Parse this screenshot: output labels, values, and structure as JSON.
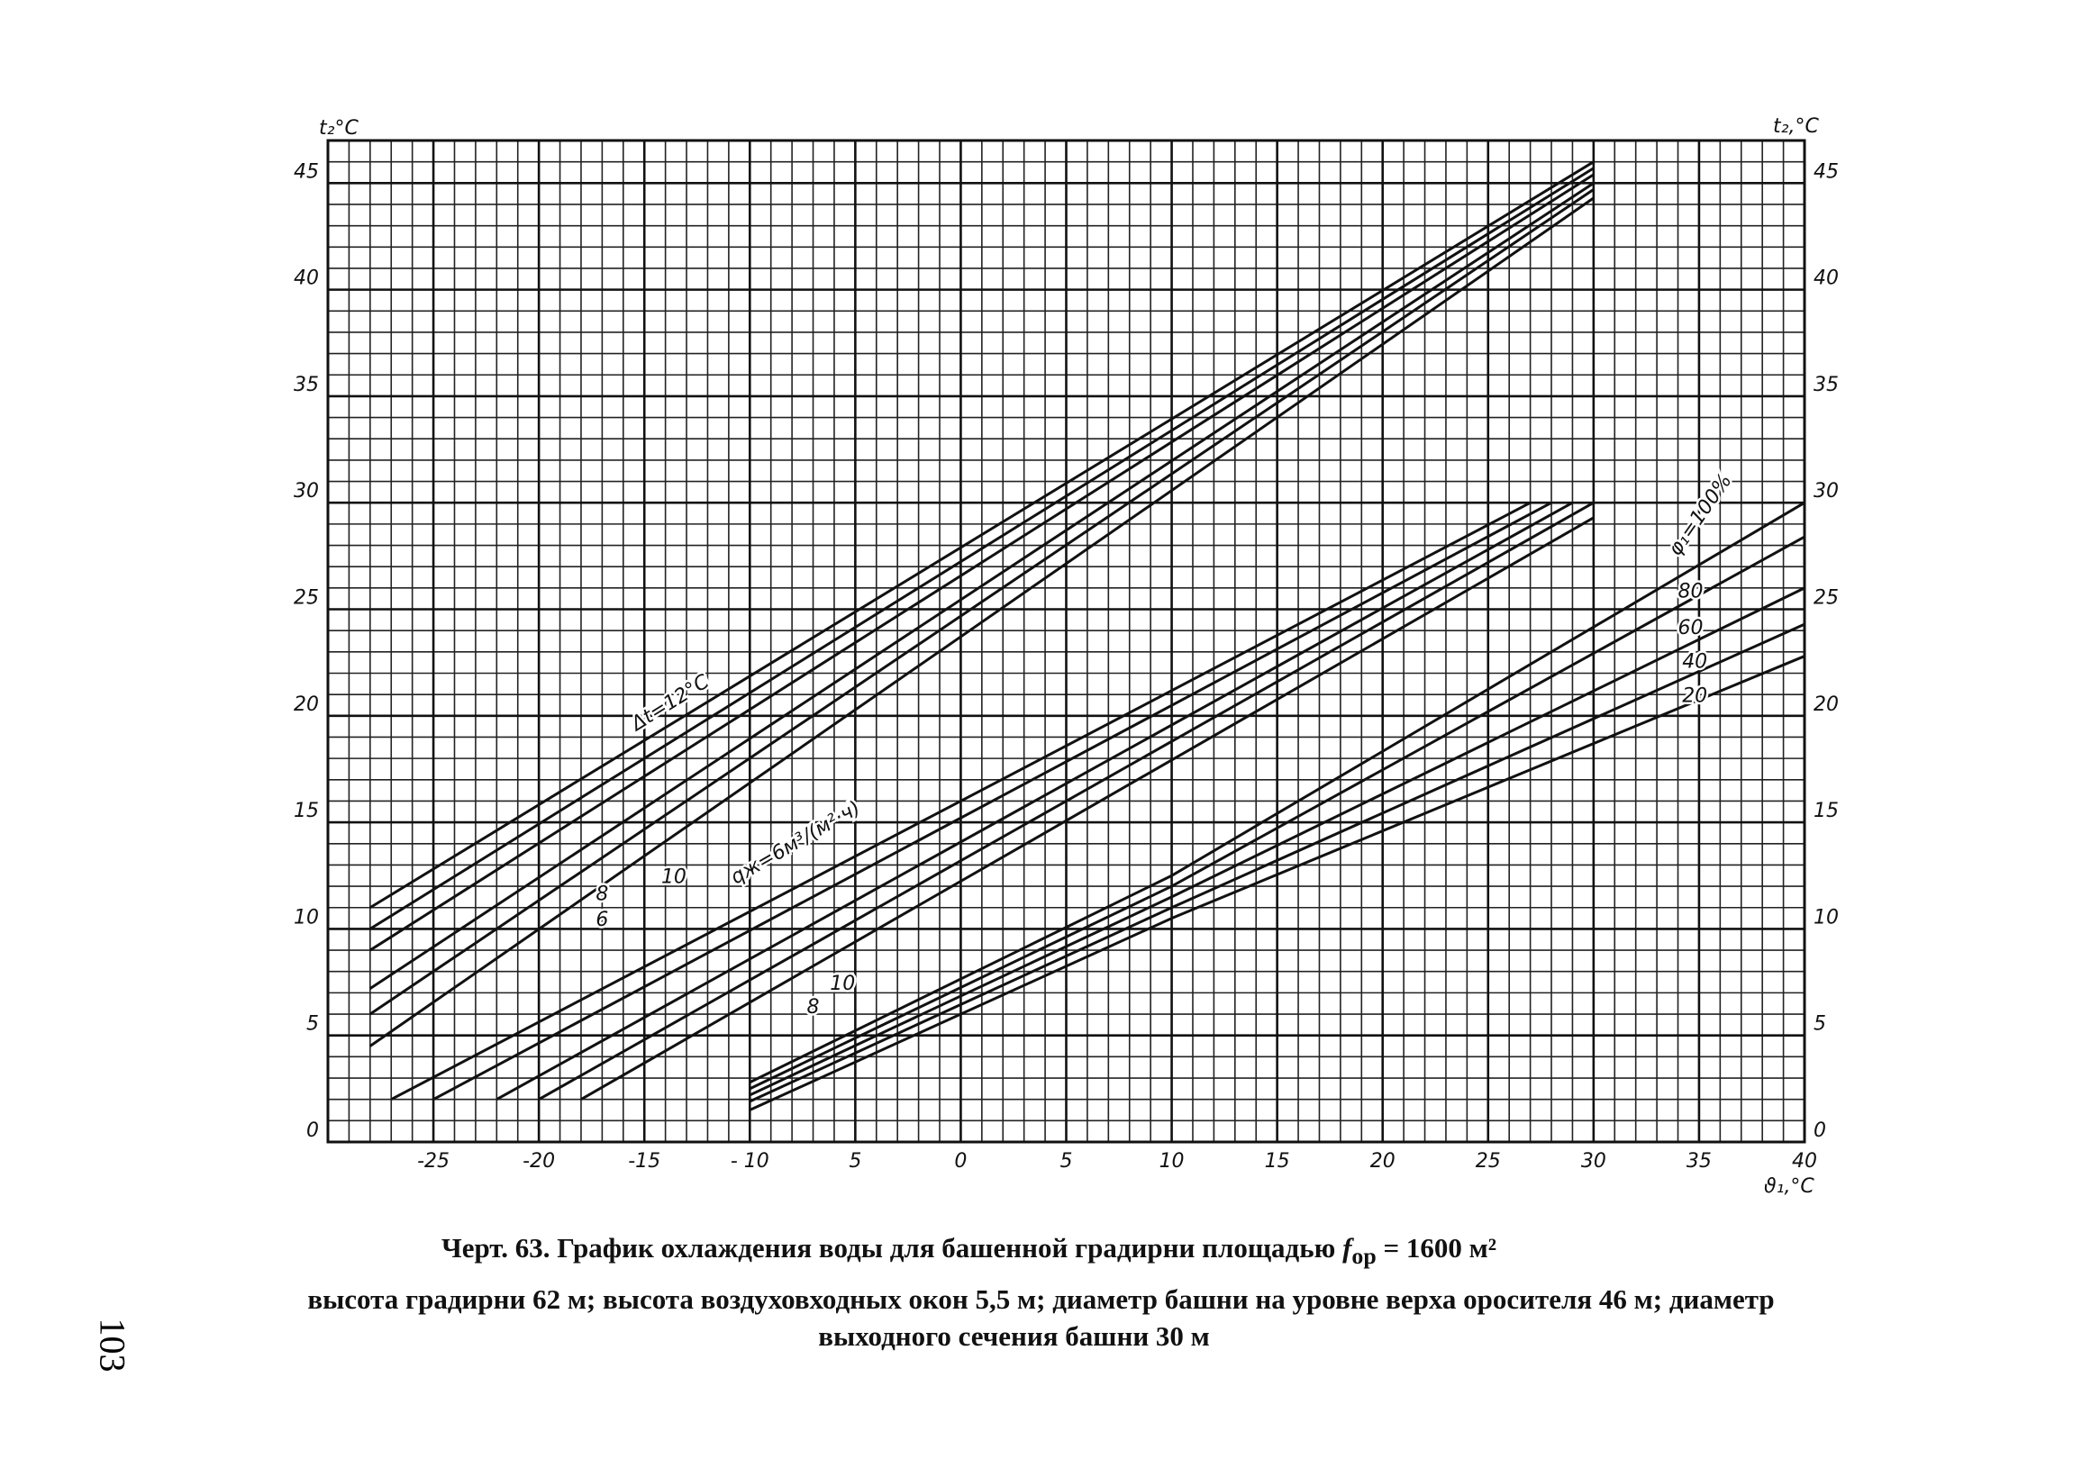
{
  "chart_data": {
    "type": "line",
    "title_parts": [
      "Черт. 63. График охлаждения воды для башенной градирни площадью",
      "f",
      "ор",
      "= 1600 м²"
    ],
    "subtitle_lines": [
      "высота градирни 62 м;  высота воздуховходных окон 5,5 м;  диаметр башни на уровне верха оросителя 46 м;  диаметр",
      "выходного сечения башни 30 м"
    ],
    "page_number": "103",
    "y_label": "t₂°C",
    "y2_label": "t₂,°C",
    "x_label": "ϑ₁,°C",
    "xlim": [
      -30,
      40
    ],
    "ylim": [
      0,
      47
    ],
    "xticks": [
      -25,
      -20,
      -15,
      {
        "value": -10,
        "label": "- 10"
      },
      {
        "value": -5,
        "label": "5"
      },
      0,
      5,
      10,
      15,
      20,
      25,
      30,
      35,
      40
    ],
    "yticks": [
      0,
      5,
      10,
      15,
      20,
      25,
      30,
      35,
      40,
      45
    ],
    "grid": true,
    "minor_grid_step": 1,
    "color": "#111111",
    "series": [
      {
        "x": [
          -28,
          30
        ],
        "values": [
          11,
          46
        ]
      },
      {
        "x": [
          -28,
          30
        ],
        "values": [
          10,
          45.7
        ]
      },
      {
        "x": [
          -28,
          30
        ],
        "values": [
          9,
          45.4
        ]
      },
      {
        "x": [
          -28,
          30
        ],
        "values": [
          7.2,
          45
        ]
      },
      {
        "x": [
          -28,
          30
        ],
        "values": [
          6,
          44.7
        ]
      },
      {
        "x": [
          -28,
          30
        ],
        "values": [
          4.5,
          44.3
        ]
      },
      {
        "x": [
          -27,
          27
        ],
        "values": [
          2,
          30
        ]
      },
      {
        "x": [
          -25,
          28
        ],
        "values": [
          2,
          30
        ]
      },
      {
        "x": [
          -22,
          29
        ],
        "values": [
          2,
          30
        ]
      },
      {
        "x": [
          -20,
          30
        ],
        "values": [
          2,
          30
        ]
      },
      {
        "x": [
          -18,
          30
        ],
        "values": [
          2,
          29.3
        ]
      },
      {
        "x": [
          -10,
          10,
          40
        ],
        "values": [
          2.8,
          12.5,
          30
        ]
      },
      {
        "x": [
          -10,
          10,
          40
        ],
        "values": [
          2.5,
          12,
          28.4
        ]
      },
      {
        "x": [
          -10,
          10,
          40
        ],
        "values": [
          2.2,
          11.5,
          26
        ]
      },
      {
        "x": [
          -10,
          10,
          40
        ],
        "values": [
          1.9,
          11,
          24.3
        ]
      },
      {
        "x": [
          -10,
          10,
          40
        ],
        "values": [
          1.5,
          10.5,
          22.8
        ]
      }
    ],
    "annotations": [
      "Δt=12°C",
      "10",
      "8",
      "6",
      "qж=6м³/(м²·ч)",
      "10",
      "8",
      "φ₁=100%",
      "80",
      "60",
      "40",
      "20"
    ]
  }
}
